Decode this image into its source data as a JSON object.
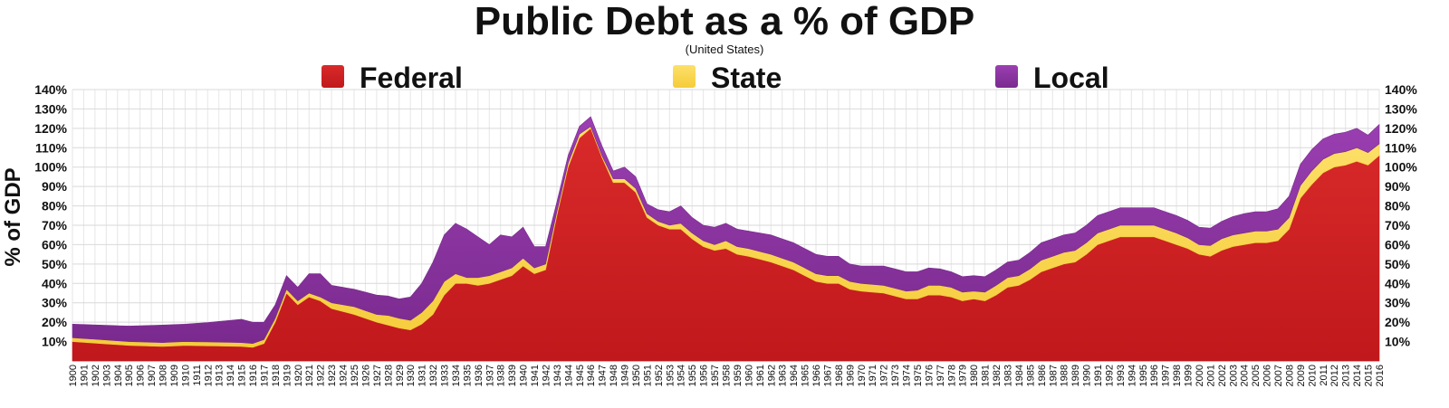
{
  "chart_data": {
    "type": "area",
    "stacked": true,
    "title": "Public Debt as a % of GDP",
    "subtitle": "(United States)",
    "ylabel": "% of GDP",
    "xlabel": "",
    "ylim": [
      0,
      140
    ],
    "yticks": [
      "10%",
      "20%",
      "30%",
      "40%",
      "50%",
      "60%",
      "70%",
      "80%",
      "90%",
      "100%",
      "110%",
      "120%",
      "130%",
      "140%"
    ],
    "ytick_values": [
      10,
      20,
      30,
      40,
      50,
      60,
      70,
      80,
      90,
      100,
      110,
      120,
      130,
      140
    ],
    "legend_position": "top",
    "grid": true,
    "x_start": 1900,
    "x_end": 2016,
    "series": [
      {
        "name": "Federal",
        "color": "#c0181c",
        "color_light": "#d92a2a",
        "key": [
          [
            1900,
            10
          ],
          [
            1905,
            8
          ],
          [
            1908,
            7.5
          ],
          [
            1910,
            8
          ],
          [
            1915,
            7.5
          ],
          [
            1916,
            7
          ],
          [
            1917,
            9
          ],
          [
            1918,
            20
          ],
          [
            1919,
            35
          ],
          [
            1920,
            29
          ],
          [
            1921,
            33
          ],
          [
            1922,
            31
          ],
          [
            1923,
            27
          ],
          [
            1925,
            24
          ],
          [
            1927,
            20
          ],
          [
            1929,
            17
          ],
          [
            1930,
            16
          ],
          [
            1931,
            19
          ],
          [
            1932,
            24
          ],
          [
            1933,
            34
          ],
          [
            1934,
            40
          ],
          [
            1935,
            40
          ],
          [
            1936,
            39
          ],
          [
            1937,
            40
          ],
          [
            1938,
            42
          ],
          [
            1939,
            44
          ],
          [
            1940,
            49
          ],
          [
            1941,
            45
          ],
          [
            1942,
            47
          ],
          [
            1943,
            75
          ],
          [
            1944,
            100
          ],
          [
            1945,
            115
          ],
          [
            1946,
            120
          ],
          [
            1947,
            105
          ],
          [
            1948,
            92
          ],
          [
            1949,
            92
          ],
          [
            1950,
            87
          ],
          [
            1951,
            74
          ],
          [
            1952,
            70
          ],
          [
            1953,
            68
          ],
          [
            1954,
            68
          ],
          [
            1955,
            63
          ],
          [
            1956,
            59
          ],
          [
            1957,
            57
          ],
          [
            1958,
            58
          ],
          [
            1959,
            55
          ],
          [
            1960,
            54
          ],
          [
            1962,
            51
          ],
          [
            1963,
            49
          ],
          [
            1964,
            47
          ],
          [
            1965,
            44
          ],
          [
            1966,
            41
          ],
          [
            1967,
            40
          ],
          [
            1968,
            40
          ],
          [
            1969,
            37
          ],
          [
            1970,
            36
          ],
          [
            1972,
            35
          ],
          [
            1974,
            32
          ],
          [
            1975,
            32
          ],
          [
            1976,
            34
          ],
          [
            1977,
            34
          ],
          [
            1978,
            33
          ],
          [
            1979,
            31
          ],
          [
            1980,
            32
          ],
          [
            1981,
            31
          ],
          [
            1982,
            34
          ],
          [
            1983,
            38
          ],
          [
            1984,
            39
          ],
          [
            1985,
            42
          ],
          [
            1986,
            46
          ],
          [
            1987,
            48
          ],
          [
            1988,
            50
          ],
          [
            1989,
            51
          ],
          [
            1990,
            55
          ],
          [
            1991,
            60
          ],
          [
            1992,
            62
          ],
          [
            1993,
            64
          ],
          [
            1994,
            64
          ],
          [
            1995,
            64
          ],
          [
            1996,
            64
          ],
          [
            1997,
            62
          ],
          [
            1998,
            60
          ],
          [
            1999,
            58
          ],
          [
            2000,
            55
          ],
          [
            2001,
            54
          ],
          [
            2002,
            57
          ],
          [
            2003,
            59
          ],
          [
            2004,
            60
          ],
          [
            2005,
            61
          ],
          [
            2006,
            61
          ],
          [
            2007,
            62
          ],
          [
            2008,
            68
          ],
          [
            2009,
            84
          ],
          [
            2010,
            91
          ],
          [
            2011,
            97
          ],
          [
            2012,
            100
          ],
          [
            2013,
            101
          ],
          [
            2014,
            103
          ],
          [
            2015,
            101
          ],
          [
            2016,
            106
          ]
        ]
      },
      {
        "name": "State",
        "color": "#f5cc3a",
        "color_light": "#fde06a",
        "key": [
          [
            1900,
            2
          ],
          [
            1910,
            2
          ],
          [
            1916,
            2
          ],
          [
            1918,
            2
          ],
          [
            1919,
            2
          ],
          [
            1920,
            2
          ],
          [
            1922,
            2
          ],
          [
            1923,
            3
          ],
          [
            1925,
            4
          ],
          [
            1927,
            4
          ],
          [
            1928,
            5
          ],
          [
            1929,
            5
          ],
          [
            1930,
            5
          ],
          [
            1931,
            6
          ],
          [
            1932,
            7
          ],
          [
            1933,
            7
          ],
          [
            1934,
            5
          ],
          [
            1935,
            3
          ],
          [
            1936,
            4
          ],
          [
            1937,
            4
          ],
          [
            1938,
            4
          ],
          [
            1939,
            4
          ],
          [
            1940,
            4
          ],
          [
            1941,
            3
          ],
          [
            1942,
            3
          ],
          [
            1943,
            2
          ],
          [
            1944,
            2
          ],
          [
            1945,
            2
          ],
          [
            1946,
            1
          ],
          [
            1947,
            1
          ],
          [
            1948,
            2
          ],
          [
            1949,
            2
          ],
          [
            1950,
            2
          ],
          [
            1951,
            2
          ],
          [
            1953,
            2
          ],
          [
            1954,
            3
          ],
          [
            1955,
            3
          ],
          [
            1956,
            3
          ],
          [
            1957,
            3
          ],
          [
            1958,
            4
          ],
          [
            1960,
            4
          ],
          [
            1963,
            4
          ],
          [
            1964,
            4
          ],
          [
            1966,
            4
          ],
          [
            1968,
            4
          ],
          [
            1970,
            4
          ],
          [
            1974,
            4
          ],
          [
            1976,
            5
          ],
          [
            1978,
            5
          ],
          [
            1980,
            4
          ],
          [
            1982,
            5
          ],
          [
            1984,
            5
          ],
          [
            1986,
            6
          ],
          [
            1988,
            6
          ],
          [
            1990,
            6
          ],
          [
            1992,
            6
          ],
          [
            1994,
            6
          ],
          [
            1996,
            6
          ],
          [
            1998,
            6
          ],
          [
            2000,
            5
          ],
          [
            2002,
            6
          ],
          [
            2004,
            6
          ],
          [
            2006,
            6
          ],
          [
            2008,
            6
          ],
          [
            2010,
            7
          ],
          [
            2012,
            7
          ],
          [
            2014,
            7
          ],
          [
            2016,
            6
          ]
        ]
      },
      {
        "name": "Local",
        "color": "#7a2a8e",
        "color_light": "#9b3fb2",
        "key": [
          [
            1900,
            7
          ],
          [
            1905,
            8
          ],
          [
            1908,
            9
          ],
          [
            1910,
            9
          ],
          [
            1912,
            10
          ],
          [
            1915,
            12
          ],
          [
            1916,
            11
          ],
          [
            1917,
            9
          ],
          [
            1918,
            7
          ],
          [
            1919,
            7
          ],
          [
            1920,
            7
          ],
          [
            1921,
            10
          ],
          [
            1922,
            12
          ],
          [
            1923,
            9
          ],
          [
            1925,
            9
          ],
          [
            1927,
            10
          ],
          [
            1929,
            10
          ],
          [
            1930,
            12
          ],
          [
            1931,
            15
          ],
          [
            1932,
            20
          ],
          [
            1933,
            24
          ],
          [
            1934,
            26
          ],
          [
            1935,
            25
          ],
          [
            1936,
            21
          ],
          [
            1937,
            16
          ],
          [
            1938,
            19
          ],
          [
            1939,
            16
          ],
          [
            1940,
            16
          ],
          [
            1941,
            11
          ],
          [
            1942,
            9
          ],
          [
            1943,
            5
          ],
          [
            1944,
            4
          ],
          [
            1945,
            4
          ],
          [
            1946,
            5
          ],
          [
            1947,
            5
          ],
          [
            1948,
            4
          ],
          [
            1949,
            6
          ],
          [
            1950,
            6
          ],
          [
            1951,
            5
          ],
          [
            1952,
            6
          ],
          [
            1953,
            7
          ],
          [
            1954,
            9
          ],
          [
            1955,
            8
          ],
          [
            1956,
            8
          ],
          [
            1957,
            9
          ],
          [
            1958,
            9
          ],
          [
            1959,
            9
          ],
          [
            1960,
            9
          ],
          [
            1962,
            10
          ],
          [
            1963,
            10
          ],
          [
            1964,
            10
          ],
          [
            1966,
            10
          ],
          [
            1968,
            10
          ],
          [
            1969,
            9
          ],
          [
            1970,
            9
          ],
          [
            1972,
            10
          ],
          [
            1974,
            10
          ],
          [
            1976,
            9
          ],
          [
            1978,
            8
          ],
          [
            1980,
            8
          ],
          [
            1982,
            8
          ],
          [
            1984,
            8
          ],
          [
            1986,
            9
          ],
          [
            1988,
            9
          ],
          [
            1990,
            9
          ],
          [
            1992,
            9
          ],
          [
            1994,
            9
          ],
          [
            1996,
            9
          ],
          [
            1998,
            9
          ],
          [
            2000,
            9
          ],
          [
            2002,
            9
          ],
          [
            2004,
            10
          ],
          [
            2006,
            10
          ],
          [
            2008,
            11
          ],
          [
            2009,
            11
          ],
          [
            2010,
            11
          ],
          [
            2012,
            10
          ],
          [
            2014,
            10
          ],
          [
            2015,
            9
          ],
          [
            2016,
            10
          ]
        ]
      }
    ]
  }
}
